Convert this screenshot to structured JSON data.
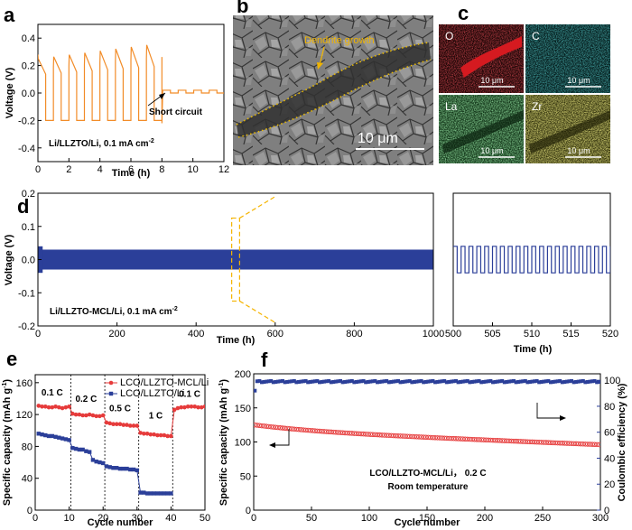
{
  "colors": {
    "orange": "#f28c28",
    "blue": "#2b3f99",
    "red": "#e63b3b",
    "eds_O": "#d1141a",
    "eds_C": "#1aa7a7",
    "eds_La": "#3d9e4a",
    "eds_Zr": "#b8b231",
    "dashed_highlight": "#f5b400"
  },
  "panels": {
    "a": {
      "letter": "a",
      "chart_data": {
        "type": "line",
        "xlabel": "Time (h)",
        "ylabel": "Voltage (V)",
        "xlim": [
          0,
          12
        ],
        "ylim": [
          -0.5,
          0.5
        ],
        "xticks": [
          "0",
          "2",
          "4",
          "6",
          "8",
          "10",
          "12"
        ],
        "yticks": [
          "0.4",
          "0.2",
          "0.0",
          "-0.2",
          "-0.4"
        ],
        "series": [
          {
            "color": "#f28c28",
            "cycles_before_short": 8,
            "amplitude_start": 0.25,
            "amplitude_end": 0.35,
            "short_at_h": 8,
            "amplitude_after_short": 0.02
          }
        ],
        "annotations": [
          "Short circuit",
          "Li/LLZTO/Li, 0.1 mA cm"
        ],
        "annotation_superscript": "-2"
      }
    },
    "b": {
      "letter": "b",
      "label": "Dendrite growth",
      "scale_bar": "10 μm"
    },
    "c": {
      "letter": "c",
      "maps": [
        {
          "element": "O",
          "scale": "10 μm"
        },
        {
          "element": "C",
          "scale": "10 μm"
        },
        {
          "element": "La",
          "scale": "10 μm"
        },
        {
          "element": "Zr",
          "scale": "10 μm"
        }
      ]
    },
    "d": {
      "letter": "d",
      "main": {
        "type": "line",
        "xlabel": "Time (h)",
        "ylabel": "Voltage (V)",
        "xlim": [
          0,
          1000
        ],
        "ylim": [
          -0.2,
          0.2
        ],
        "xticks": [
          "0",
          "200",
          "400",
          "600",
          "800",
          "1000"
        ],
        "yticks": [
          "0.2",
          "0.1",
          "0.0",
          "-0.1",
          "-0.2"
        ],
        "band_amplitude": 0.03,
        "initial_amplitude": 0.04,
        "zoom_window_h": [
          490,
          510
        ],
        "annotation": "Li/LLZTO-MCL/Li, 0.1 mA cm",
        "annotation_superscript": "-2"
      },
      "inset": {
        "type": "line",
        "xlabel": "Time (h)",
        "xlim": [
          500,
          520
        ],
        "xticks": [
          "500",
          "505",
          "510",
          "515",
          "520"
        ],
        "ylim": [
          -0.2,
          0.2
        ],
        "square_wave_amplitude": 0.04,
        "period_h": 1
      }
    },
    "e": {
      "letter": "e",
      "chart_data": {
        "type": "scatter",
        "xlabel": "Cycle number",
        "ylabel": "Specific capacity (mAh g",
        "ylabel_sup": "-1",
        "ylabel_close": ")",
        "xlim": [
          0,
          50
        ],
        "ylim": [
          0,
          170
        ],
        "xticks": [
          "0",
          "10",
          "20",
          "30",
          "40",
          "50"
        ],
        "yticks": [
          "160",
          "120",
          "80",
          "40",
          "0"
        ],
        "rate_labels": [
          "0.1 C",
          "0.2 C",
          "0.5 C",
          "1 C",
          "0.1 C"
        ],
        "series": [
          {
            "name": "LCO/LLZTO-MCL/Li",
            "color": "#e63b3b",
            "values": [
              131,
              130,
              130,
              129,
              129,
              130,
              129,
              128,
              129,
              130,
              121,
              120,
              120,
              119,
              119,
              120,
              119,
              118,
              118,
              119,
              110,
              109,
              108,
              108,
              108,
              107,
              107,
              106,
              106,
              106,
              97,
              96,
              96,
              95,
              95,
              94,
              94,
              94,
              93,
              93,
              126,
              128,
              129,
              129,
              130,
              130,
              130,
              129,
              129,
              130
            ]
          },
          {
            "name": "LCO/LLZTO/Li",
            "color": "#2b3f99",
            "values": [
              96,
              95,
              94,
              93,
              93,
              92,
              91,
              90,
              89,
              88,
              78,
              77,
              76,
              76,
              74,
              73,
              63,
              61,
              60,
              59,
              55,
              54,
              53,
              53,
              52,
              52,
              52,
              51,
              51,
              50,
              22,
              22,
              21,
              21,
              21,
              21,
              21,
              21,
              21,
              21
            ]
          }
        ]
      }
    },
    "f": {
      "letter": "f",
      "chart_data": {
        "type": "scatter",
        "xlabel": "Cycle number",
        "ylabel_left": "Specific capacity (mAh g",
        "ylabel_left_sup": "-1",
        "ylabel_left_close": ")",
        "ylabel_right": "Coulombic efficiency (%)",
        "xlim": [
          0,
          300
        ],
        "ylim_left": [
          0,
          200
        ],
        "ylim_right": [
          0,
          105
        ],
        "xticks": [
          "0",
          "50",
          "100",
          "150",
          "200",
          "250",
          "300"
        ],
        "yticks_left": [
          "200",
          "150",
          "100",
          "50",
          "0"
        ],
        "yticks_right": [
          "100",
          "80",
          "60",
          "40",
          "20",
          "0"
        ],
        "capacity_start": 125,
        "capacity_end": 96,
        "coulombic_efficiency": 99.5,
        "annotation_lines": [
          "LCO/LLZTO-MCL/Li， 0.2 C",
          "Room temperature"
        ]
      }
    }
  }
}
